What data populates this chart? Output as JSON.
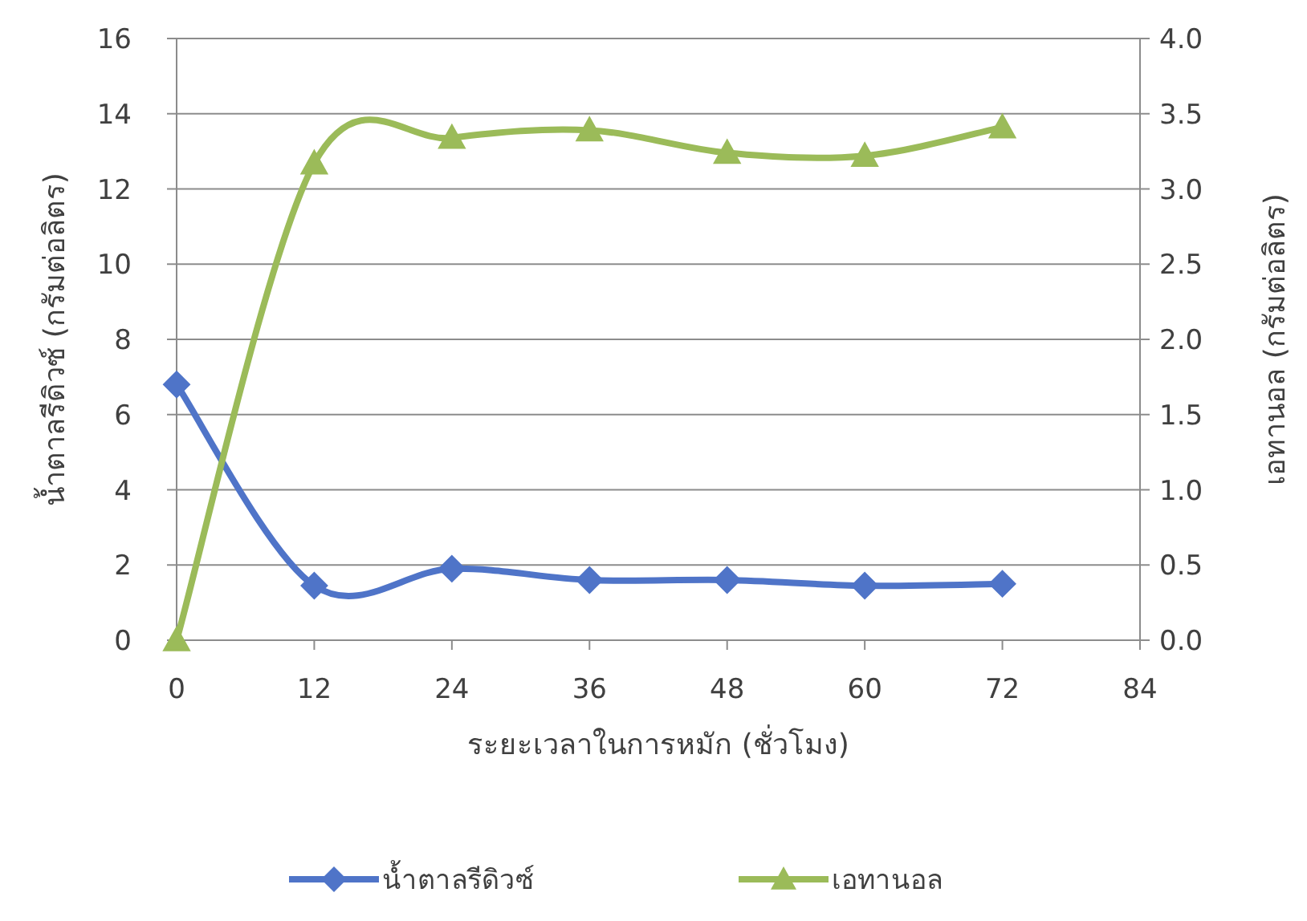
{
  "chart_data": {
    "type": "line",
    "xlabel": "ระยะเวลาในการหมัก (ชั่วโมง)",
    "ylabel": "น้ำตาลรีดิวซ์ (กรัมต่อลิตร)",
    "y2label": "เอทานอล (กรัมต่อลิตร)",
    "x": [
      0,
      12,
      24,
      36,
      48,
      60,
      72
    ],
    "xlim": [
      0,
      84
    ],
    "xticks": [
      0,
      12,
      24,
      36,
      48,
      60,
      72,
      84
    ],
    "ylim": [
      0,
      16
    ],
    "yticks": [
      0,
      2,
      4,
      6,
      8,
      10,
      12,
      14,
      16
    ],
    "y2lim": [
      0,
      4
    ],
    "y2ticks": [
      {
        "value": 0,
        "label": "0.0"
      },
      0.5,
      {
        "value": 1,
        "label": "1.0"
      },
      1.5,
      {
        "value": 2,
        "label": "2.0"
      },
      2.5,
      {
        "value": 3,
        "label": "3.0"
      },
      3.5,
      {
        "value": 4,
        "label": "4.0"
      }
    ],
    "grid": "y",
    "legend": "bottom",
    "series": [
      {
        "name": "น้ำตาลรีดิวซ์",
        "color": "#4f74c8",
        "marker": "diamond",
        "values": [
          6.8,
          1.45,
          1.9,
          1.6,
          1.6,
          1.45,
          1.5
        ]
      },
      {
        "name": "เอทานอล",
        "color": "#9bbb59",
        "marker": "triangle",
        "axis": "y2",
        "values": [
          0,
          3.17,
          3.34,
          3.39,
          3.24,
          3.22,
          3.41
        ]
      }
    ]
  }
}
